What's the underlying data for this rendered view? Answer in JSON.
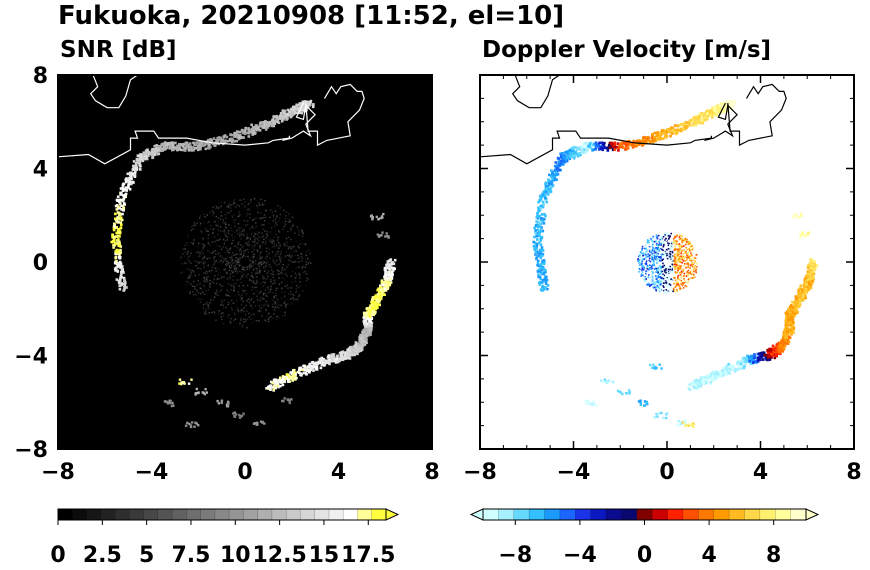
{
  "figure": {
    "title": "Fukuoka, 20210908 [11:52, el=10]"
  },
  "chart_data": [
    {
      "type": "heatmap",
      "title": "SNR [dB]",
      "xlabel": "",
      "ylabel": "",
      "xlim": [
        -8,
        8
      ],
      "ylim": [
        -8,
        8
      ],
      "x_ticks": [
        "−8",
        "−4",
        "0",
        "4",
        "8"
      ],
      "y_ticks": [
        "8",
        "4",
        "0",
        "−4",
        "−8"
      ],
      "background": "#000000",
      "colorbar": {
        "range": [
          0,
          18.5
        ],
        "labels": [
          "0",
          "2.5",
          "5",
          "7.5",
          "10",
          "12.5",
          "15",
          "17.5"
        ],
        "extend": "max",
        "colors": [
          "#000000",
          "#0b0b0b",
          "#161616",
          "#222222",
          "#2e2e2e",
          "#3a3a3a",
          "#474747",
          "#545454",
          "#616161",
          "#6e6e6e",
          "#7b7b7b",
          "#888888",
          "#959595",
          "#a2a2a2",
          "#afafaf",
          "#bcbcbc",
          "#c9c9c9",
          "#d6d6d6",
          "#e3e3e3",
          "#f0f0f0",
          "#ffffff",
          "#ffff99",
          "#ffff40"
        ]
      },
      "echoes": [
        {
          "name": "north-west arc",
          "points": [
            [
              -5.3,
              -1.1
            ],
            [
              -5.6,
              1.0
            ],
            [
              -5.3,
              3.0
            ],
            [
              -4.5,
              4.5
            ],
            [
              -3.5,
              5.0
            ],
            [
              -2.0,
              5.0
            ],
            [
              -0.5,
              5.4
            ],
            [
              1.0,
              6.0
            ],
            [
              2.0,
              6.5
            ],
            [
              2.7,
              6.8
            ]
          ],
          "snr": [
            14,
            19,
            17,
            15,
            13,
            12,
            12,
            13,
            14,
            15
          ]
        },
        {
          "name": "east band",
          "points": [
            [
              1.0,
              -5.3
            ],
            [
              2.0,
              -4.8
            ],
            [
              3.3,
              -4.2
            ],
            [
              4.4,
              -3.9
            ],
            [
              4.9,
              -3.5
            ],
            [
              5.2,
              -2.8
            ],
            [
              5.2,
              -2.2
            ],
            [
              5.6,
              -1.6
            ],
            [
              6.0,
              -0.8
            ],
            [
              6.2,
              0.0
            ]
          ],
          "snr": [
            17,
            18,
            16,
            15,
            14,
            12,
            18,
            19,
            18,
            16
          ]
        },
        {
          "name": "south-west patches",
          "points": [
            [
              -2.6,
              -5.1
            ],
            [
              -1.9,
              -5.5
            ],
            [
              -3.3,
              -6.0
            ],
            [
              -1.0,
              -6.0
            ],
            [
              -0.3,
              -6.5
            ],
            [
              -2.3,
              -6.9
            ],
            [
              0.6,
              -6.8
            ],
            [
              1.8,
              -5.9
            ]
          ],
          "snr": [
            18,
            12,
            10,
            11,
            9,
            10,
            10,
            9
          ]
        },
        {
          "name": "isolated",
          "points": [
            [
              5.6,
              2.0
            ],
            [
              5.9,
              1.2
            ]
          ],
          "snr": [
            12,
            10
          ]
        }
      ],
      "center_clutter": {
        "x": 0,
        "y": 0,
        "radius": 2.0
      }
    },
    {
      "type": "heatmap",
      "title": "Doppler Velocity [m/s]",
      "xlabel": "",
      "ylabel": "",
      "xlim": [
        -8,
        8
      ],
      "ylim": [
        -8,
        8
      ],
      "x_ticks": [
        "−8",
        "−4",
        "0",
        "4",
        "8"
      ],
      "y_ticks": [],
      "background": "#ffffff",
      "colorbar": {
        "range": [
          -10,
          10
        ],
        "labels": [
          "−8",
          "−4",
          "0",
          "4",
          "8"
        ],
        "extend": "both",
        "colors": [
          "#cfffff",
          "#a6f0ff",
          "#66d9ff",
          "#33c0ff",
          "#1a99ff",
          "#1a66ff",
          "#1a33e6",
          "#0a1ac0",
          "#0b0b90",
          "#080870",
          "#800000",
          "#cc0000",
          "#ff2000",
          "#ff5000",
          "#ff7800",
          "#ff9a00",
          "#ffbb22",
          "#ffd84a",
          "#fff070",
          "#ffff9e",
          "#ffffcc"
        ]
      },
      "echoes": [
        {
          "name": "north-west arc",
          "points": [
            [
              -5.3,
              -1.1
            ],
            [
              -5.6,
              1.0
            ],
            [
              -5.3,
              3.0
            ],
            [
              -4.5,
              4.5
            ],
            [
              -3.5,
              5.0
            ],
            [
              -2.0,
              5.0
            ],
            [
              -0.5,
              5.4
            ],
            [
              1.0,
              6.0
            ],
            [
              2.0,
              6.5
            ],
            [
              2.7,
              6.8
            ]
          ],
          "velocity": [
            -6.2,
            -6.5,
            -6.8,
            -5.0,
            -9.0,
            3.0,
            5.0,
            6.5,
            7.5,
            9.5
          ]
        },
        {
          "name": "east band",
          "points": [
            [
              1.0,
              -5.3
            ],
            [
              2.0,
              -4.8
            ],
            [
              3.3,
              -4.2
            ],
            [
              4.4,
              -3.9
            ],
            [
              4.9,
              -3.5
            ],
            [
              5.2,
              -2.8
            ],
            [
              5.2,
              -2.2
            ],
            [
              5.6,
              -1.6
            ],
            [
              6.0,
              -0.8
            ],
            [
              6.2,
              0.0
            ]
          ],
          "velocity": [
            -9.0,
            -9.2,
            -8.5,
            0.5,
            4.0,
            5.5,
            5.0,
            5.8,
            5.5,
            7.0
          ]
        },
        {
          "name": "south-west patches",
          "points": [
            [
              -2.6,
              -5.1
            ],
            [
              -1.9,
              -5.5
            ],
            [
              -3.3,
              -6.0
            ],
            [
              -1.0,
              -6.0
            ],
            [
              -0.3,
              -6.5
            ],
            [
              0.6,
              -6.8
            ],
            [
              0.9,
              -6.9
            ],
            [
              -0.5,
              -4.4
            ]
          ],
          "velocity": [
            -8.5,
            -7.5,
            -9.5,
            -6.0,
            -8.0,
            -9.0,
            7.5,
            -7.0
          ]
        },
        {
          "name": "isolated",
          "points": [
            [
              5.6,
              2.0
            ],
            [
              5.9,
              1.2
            ]
          ],
          "velocity": [
            9.0,
            8.5
          ]
        }
      ],
      "center_clutter": {
        "x": 0,
        "y": 0,
        "radius": 1.3,
        "west_velocity": -6,
        "east_velocity": 5
      }
    }
  ]
}
